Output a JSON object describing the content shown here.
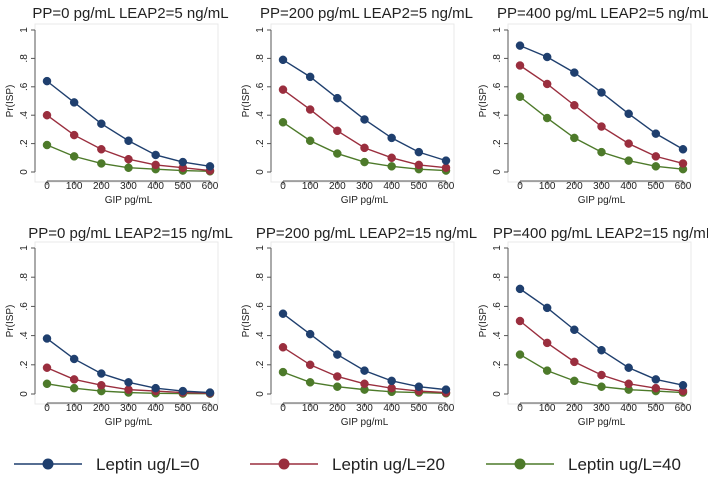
{
  "chart_data": {
    "type": "line",
    "layout": "2x3 grid of panels",
    "x": [
      0,
      100,
      200,
      300,
      400,
      500,
      600
    ],
    "xlabel": "GIP pg/mL",
    "ylabel": "Pr(ISP)",
    "xlim": [
      0,
      600
    ],
    "ylim": [
      0,
      1
    ],
    "y_tick_labels": [
      "0",
      ".2",
      ".4",
      ".6",
      ".8",
      "1"
    ],
    "grid": false,
    "legend": {
      "placement": "bottom",
      "entries": [
        {
          "name": "Leptin ug/L=0",
          "color": "#1f3f6e"
        },
        {
          "name": "Leptin ug/L=20",
          "color": "#9a2e3e"
        },
        {
          "name": "Leptin ug/L=40",
          "color": "#4d7a2a"
        }
      ]
    },
    "panels": [
      {
        "title": "PP=0 pg/mL LEAP2=5 ng/mL",
        "series": [
          {
            "name": "Leptin ug/L=0",
            "values": [
              0.64,
              0.49,
              0.34,
              0.22,
              0.12,
              0.07,
              0.04
            ]
          },
          {
            "name": "Leptin ug/L=20",
            "values": [
              0.4,
              0.26,
              0.16,
              0.09,
              0.05,
              0.03,
              0.01
            ]
          },
          {
            "name": "Leptin ug/L=40",
            "values": [
              0.19,
              0.11,
              0.06,
              0.03,
              0.02,
              0.01,
              0.005
            ]
          }
        ]
      },
      {
        "title": "PP=200 pg/mL LEAP2=5 ng/mL",
        "series": [
          {
            "name": "Leptin ug/L=0",
            "values": [
              0.79,
              0.67,
              0.52,
              0.37,
              0.24,
              0.14,
              0.08
            ]
          },
          {
            "name": "Leptin ug/L=20",
            "values": [
              0.58,
              0.44,
              0.29,
              0.17,
              0.1,
              0.05,
              0.03
            ]
          },
          {
            "name": "Leptin ug/L=40",
            "values": [
              0.35,
              0.22,
              0.13,
              0.07,
              0.04,
              0.02,
              0.01
            ]
          }
        ]
      },
      {
        "title": "PP=400 pg/mL LEAP2=5 ng/mL",
        "series": [
          {
            "name": "Leptin ug/L=0",
            "values": [
              0.89,
              0.81,
              0.7,
              0.56,
              0.41,
              0.27,
              0.16
            ]
          },
          {
            "name": "Leptin ug/L=20",
            "values": [
              0.75,
              0.62,
              0.47,
              0.32,
              0.2,
              0.11,
              0.06
            ]
          },
          {
            "name": "Leptin ug/L=40",
            "values": [
              0.53,
              0.38,
              0.24,
              0.14,
              0.08,
              0.04,
              0.02
            ]
          }
        ]
      },
      {
        "title": "PP=0 pg/mL LEAP2=15 ng/mL",
        "series": [
          {
            "name": "Leptin ug/L=0",
            "values": [
              0.38,
              0.24,
              0.14,
              0.08,
              0.04,
              0.02,
              0.01
            ]
          },
          {
            "name": "Leptin ug/L=20",
            "values": [
              0.18,
              0.1,
              0.06,
              0.03,
              0.02,
              0.01,
              0.005
            ]
          },
          {
            "name": "Leptin ug/L=40",
            "values": [
              0.07,
              0.04,
              0.02,
              0.01,
              0.005,
              0.003,
              0.002
            ]
          }
        ]
      },
      {
        "title": "PP=200 pg/mL LEAP2=15 ng/mL",
        "series": [
          {
            "name": "Leptin ug/L=0",
            "values": [
              0.55,
              0.41,
              0.27,
              0.16,
              0.09,
              0.05,
              0.03
            ]
          },
          {
            "name": "Leptin ug/L=20",
            "values": [
              0.32,
              0.2,
              0.12,
              0.07,
              0.04,
              0.02,
              0.01
            ]
          },
          {
            "name": "Leptin ug/L=40",
            "values": [
              0.15,
              0.08,
              0.05,
              0.03,
              0.015,
              0.01,
              0.005
            ]
          }
        ]
      },
      {
        "title": "PP=400 pg/mL LEAP2=15 ng/mL",
        "series": [
          {
            "name": "Leptin ug/L=0",
            "values": [
              0.72,
              0.59,
              0.44,
              0.3,
              0.18,
              0.1,
              0.06
            ]
          },
          {
            "name": "Leptin ug/L=20",
            "values": [
              0.5,
              0.35,
              0.22,
              0.13,
              0.07,
              0.04,
              0.02
            ]
          },
          {
            "name": "Leptin ug/L=40",
            "values": [
              0.27,
              0.16,
              0.09,
              0.05,
              0.03,
              0.02,
              0.01
            ]
          }
        ]
      }
    ]
  }
}
